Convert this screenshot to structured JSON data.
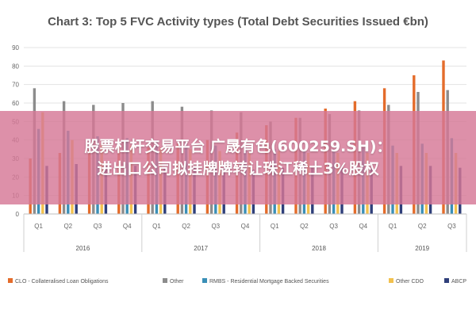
{
  "chart_data": {
    "type": "bar",
    "title": "Chart 3: Top 5 FVC Activity types (Total Debt Securities Issued €bn)",
    "ylim": [
      0,
      90
    ],
    "yticks": [
      0,
      10,
      20,
      30,
      40,
      50,
      60,
      70,
      80,
      90
    ],
    "grid": "horizontal",
    "legend_position": "bottom",
    "categories": [
      "Q1",
      "Q2",
      "Q3",
      "Q4",
      "Q1",
      "Q2",
      "Q3",
      "Q4",
      "Q1",
      "Q2",
      "Q3",
      "Q4",
      "Q1",
      "Q2",
      "Q3"
    ],
    "groups": [
      {
        "label": "2016",
        "count": 4
      },
      {
        "label": "2017",
        "count": 4
      },
      {
        "label": "2018",
        "count": 4
      },
      {
        "label": "2019",
        "count": 3
      }
    ],
    "series": [
      {
        "name": "CLO - Collateralised Loan Obligations",
        "color": "#e46c2b",
        "values": [
          30,
          33,
          35,
          37,
          36,
          38,
          40,
          44,
          48,
          52,
          57,
          61,
          68,
          75,
          83
        ]
      },
      {
        "name": "Other",
        "color": "#8c8c8c",
        "values": [
          68,
          61,
          59,
          60,
          61,
          58,
          56,
          55,
          50,
          52,
          54,
          56,
          59,
          66,
          67
        ]
      },
      {
        "name": "RMBS - Residential Mortgage Backed Securities",
        "color": "#3a8fb7",
        "values": [
          46,
          45,
          42,
          41,
          40,
          39,
          37,
          36,
          35,
          35,
          35,
          36,
          37,
          38,
          41
        ]
      },
      {
        "name": "Other CDO",
        "color": "#f2c14e",
        "values": [
          55,
          40,
          38,
          37,
          36,
          35,
          34,
          33,
          34,
          33,
          33,
          33,
          33,
          33,
          33
        ]
      },
      {
        "name": "ABCP",
        "color": "#2f3f7a",
        "values": [
          26,
          27,
          26,
          26,
          25,
          25,
          25,
          24,
          25,
          25,
          25,
          25,
          26,
          26,
          25
        ]
      }
    ]
  },
  "overlay": {
    "line1": "股票杠杆交易平台 广晟有色(600259.SH)：",
    "line2": "进出口公司拟挂牌牌转让珠江稀土3%股权"
  }
}
